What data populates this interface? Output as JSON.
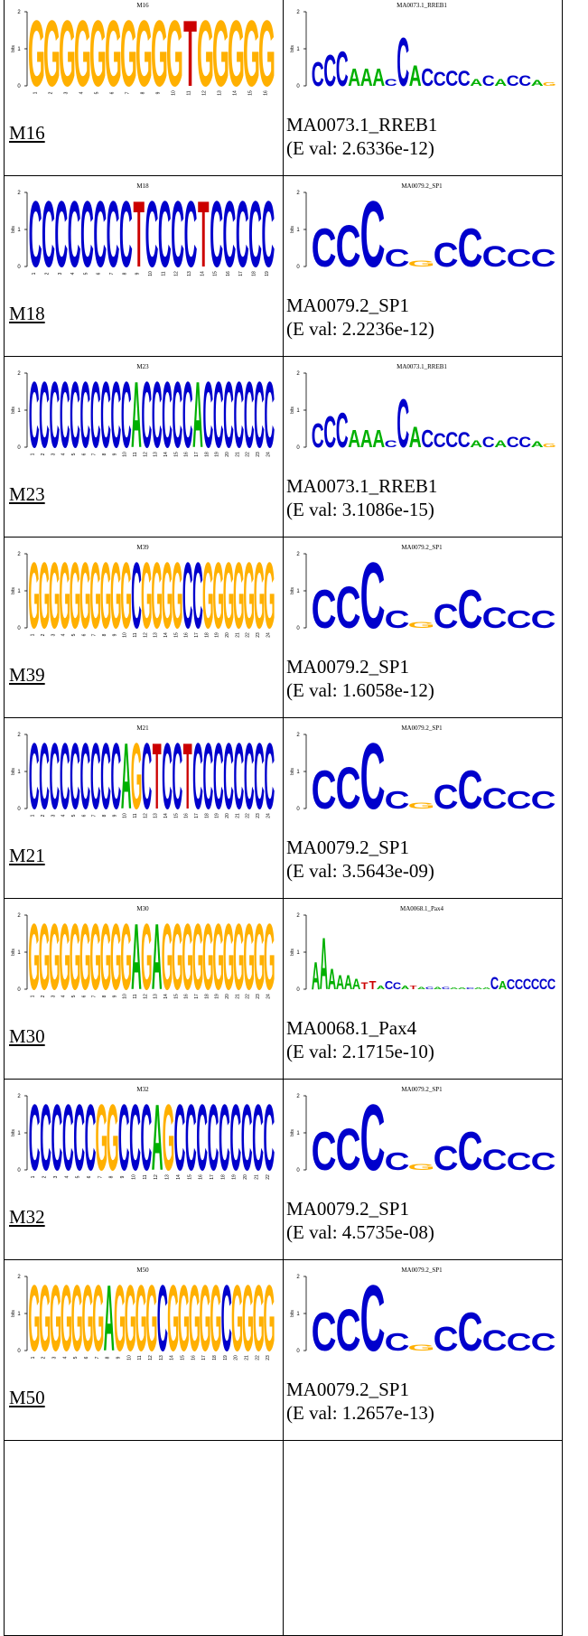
{
  "colors": {
    "A": "#00b000",
    "C": "#0000cc",
    "G": "#ffb000",
    "T": "#cc0000"
  },
  "rows": [
    {
      "motif_id": "M16",
      "motif_logo": {
        "title": "M16",
        "ylabel": "bits",
        "yticks": [
          "2",
          "1",
          "0"
        ],
        "positions": [
          "G",
          "G",
          "G",
          "G",
          "G",
          "G",
          "G",
          "G",
          "G",
          "G",
          "T",
          "G",
          "G",
          "G",
          "G",
          "G"
        ]
      },
      "match_id": "MA0073.1_RREB1",
      "eval": "(E val: 2.6336e-12)",
      "match_logo": {
        "title": "MA0073.1_RREB1",
        "ylabel": "bits",
        "yticks": [
          "2",
          "1",
          "0"
        ]
      }
    },
    {
      "motif_id": "M18",
      "motif_logo": {
        "title": "M18",
        "ylabel": "bits",
        "yticks": [
          "2",
          "1",
          "0"
        ],
        "positions": [
          "C",
          "C",
          "C",
          "C",
          "C",
          "C",
          "C",
          "C",
          "T",
          "C",
          "C",
          "C",
          "C",
          "T",
          "C",
          "C",
          "C",
          "C",
          "C"
        ]
      },
      "match_id": "MA0079.2_SP1",
      "eval": "(E val: 2.2236e-12)",
      "match_logo": {
        "title": "MA0079.2_SP1",
        "ylabel": "bits",
        "yticks": [
          "2",
          "1",
          "0"
        ]
      }
    },
    {
      "motif_id": "M23",
      "motif_logo": {
        "title": "M23",
        "ylabel": "bits",
        "yticks": [
          "2",
          "1",
          "0"
        ],
        "positions": [
          "C",
          "C",
          "C",
          "C",
          "C",
          "C",
          "C",
          "C",
          "C",
          "C",
          "A",
          "C",
          "C",
          "C",
          "C",
          "C",
          "A",
          "C",
          "C",
          "C",
          "C",
          "C",
          "C",
          "C"
        ]
      },
      "match_id": "MA0073.1_RREB1",
      "eval": "(E val: 3.1086e-15)",
      "match_logo": {
        "title": "MA0073.1_RREB1",
        "ylabel": "bits",
        "yticks": [
          "2",
          "1",
          "0"
        ]
      }
    },
    {
      "motif_id": "M39",
      "motif_logo": {
        "title": "M39",
        "ylabel": "bits",
        "yticks": [
          "2",
          "1",
          "0"
        ],
        "positions": [
          "G",
          "G",
          "G",
          "G",
          "G",
          "G",
          "G",
          "G",
          "G",
          "G",
          "C",
          "G",
          "G",
          "G",
          "G",
          "C",
          "C",
          "G",
          "G",
          "G",
          "G",
          "G",
          "G",
          "G"
        ]
      },
      "match_id": "MA0079.2_SP1",
      "eval": "(E val: 1.6058e-12)",
      "match_logo": {
        "title": "MA0079.2_SP1",
        "ylabel": "bits",
        "yticks": [
          "2",
          "1",
          "0"
        ]
      }
    },
    {
      "motif_id": "M21",
      "motif_logo": {
        "title": "M21",
        "ylabel": "bits",
        "yticks": [
          "2",
          "1",
          "0"
        ],
        "positions": [
          "C",
          "C",
          "C",
          "C",
          "C",
          "C",
          "C",
          "C",
          "C",
          "A",
          "G",
          "C",
          "T",
          "C",
          "C",
          "T",
          "C",
          "C",
          "C",
          "C",
          "C",
          "C",
          "C",
          "C"
        ]
      },
      "match_id": "MA0079.2_SP1",
      "eval": "(E val: 3.5643e-09)",
      "match_logo": {
        "title": "MA0079.2_SP1",
        "ylabel": "bits",
        "yticks": [
          "2",
          "1",
          "0"
        ]
      }
    },
    {
      "motif_id": "M30",
      "motif_logo": {
        "title": "M30",
        "ylabel": "bits",
        "yticks": [
          "2",
          "1",
          "0"
        ],
        "positions": [
          "G",
          "G",
          "G",
          "G",
          "G",
          "G",
          "G",
          "G",
          "G",
          "G",
          "A",
          "G",
          "A",
          "G",
          "G",
          "G",
          "G",
          "G",
          "G",
          "G",
          "G",
          "G",
          "G",
          "G"
        ]
      },
      "match_id": "MA0068.1_Pax4",
      "eval": "(E val: 2.1715e-10)",
      "match_logo": {
        "title": "MA0068.1_Pax4",
        "ylabel": "bits",
        "yticks": [
          "2",
          "1",
          "0"
        ]
      }
    },
    {
      "motif_id": "M32",
      "motif_logo": {
        "title": "M32",
        "ylabel": "bits",
        "yticks": [
          "2",
          "1",
          "0"
        ],
        "positions": [
          "C",
          "C",
          "C",
          "C",
          "C",
          "C",
          "G",
          "G",
          "C",
          "C",
          "C",
          "A",
          "G",
          "C",
          "C",
          "C",
          "C",
          "C",
          "C",
          "C",
          "C",
          "C"
        ]
      },
      "match_id": "MA0079.2_SP1",
      "eval": "(E val: 4.5735e-08)",
      "match_logo": {
        "title": "MA0079.2_SP1",
        "ylabel": "bits",
        "yticks": [
          "2",
          "1",
          "0"
        ]
      }
    },
    {
      "motif_id": "M50",
      "motif_logo": {
        "title": "M50",
        "ylabel": "bits",
        "yticks": [
          "2",
          "1",
          "0"
        ],
        "positions": [
          "G",
          "G",
          "G",
          "G",
          "G",
          "G",
          "G",
          "A",
          "G",
          "G",
          "G",
          "G",
          "C",
          "G",
          "G",
          "G",
          "G",
          "G",
          "C",
          "G",
          "G",
          "G",
          "G"
        ]
      },
      "match_id": "MA0079.2_SP1",
      "eval": "(E val: 1.2657e-13)",
      "match_logo": {
        "title": "MA0079.2_SP1",
        "ylabel": "bits",
        "yticks": [
          "2",
          "1",
          "0"
        ]
      }
    }
  ]
}
